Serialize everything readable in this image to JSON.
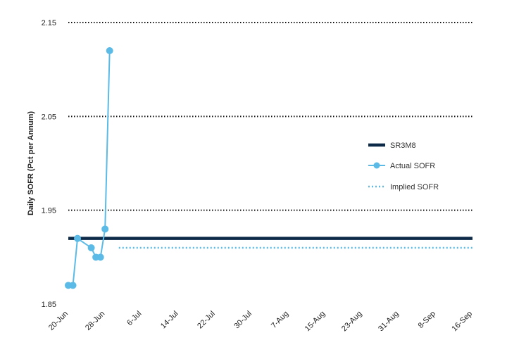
{
  "chart_data": {
    "type": "line",
    "ylabel": "Daily SOFR (Pct per Annum)",
    "ylim": [
      1.85,
      2.15
    ],
    "yticks": [
      1.85,
      1.95,
      2.05,
      2.15
    ],
    "ytick_labels": [
      "1.85",
      "1.95",
      "2.05",
      "2.15"
    ],
    "xlim": [
      "2019-06-20",
      "2019-09-16"
    ],
    "xticks": [
      "2019-06-20",
      "2019-06-28",
      "2019-07-06",
      "2019-07-14",
      "2019-07-22",
      "2019-07-30",
      "2019-08-07",
      "2019-08-15",
      "2019-08-23",
      "2019-08-31",
      "2019-09-08",
      "2019-09-16"
    ],
    "xtick_labels": [
      "20-Jun",
      "28-Jun",
      "6-Jul",
      "14-Jul",
      "22-Jul",
      "30-Jul",
      "7-Aug",
      "15-Aug",
      "23-Aug",
      "31-Aug",
      "8-Sep",
      "16-Sep"
    ],
    "grid": "horizontal dotted",
    "legend_position": "right",
    "series": [
      {
        "name": "SR3M8",
        "style": "solid-thick",
        "color": "#0d2a48",
        "x": [
          "2019-06-20",
          "2019-09-16"
        ],
        "y": [
          1.92,
          1.92
        ]
      },
      {
        "name": "Actual SOFR",
        "style": "line-markers",
        "color": "#5bbbe6",
        "x": [
          "2019-06-20",
          "2019-06-21",
          "2019-06-22",
          "2019-06-25",
          "2019-06-26",
          "2019-06-27",
          "2019-06-28",
          "2019-06-29"
        ],
        "y": [
          1.87,
          1.87,
          1.92,
          1.91,
          1.9,
          1.9,
          1.93,
          2.12
        ]
      },
      {
        "name": "Implied SOFR",
        "style": "dotted",
        "color": "#5bbbe6",
        "x": [
          "2019-07-01",
          "2019-09-16"
        ],
        "y": [
          1.91,
          1.91
        ]
      }
    ]
  }
}
